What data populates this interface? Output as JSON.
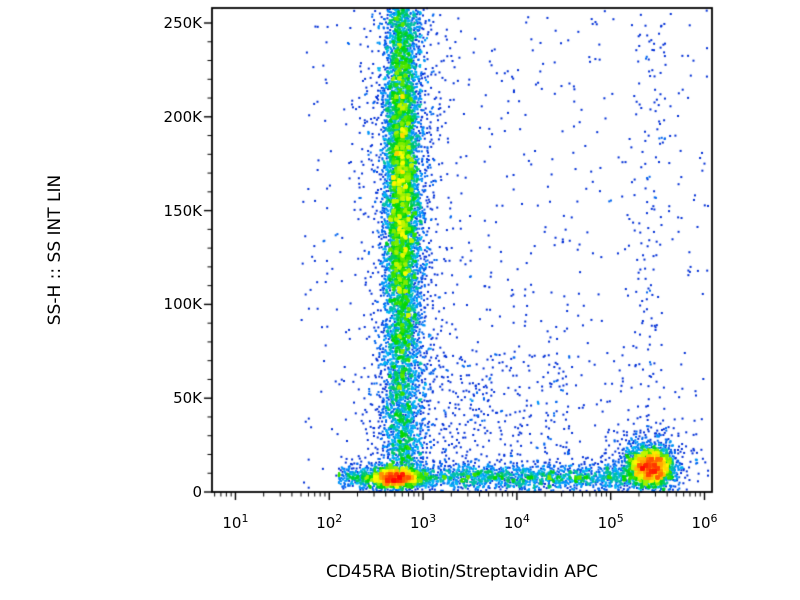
{
  "figure": {
    "background": "#ffffff",
    "text_color": "#000000"
  },
  "chart_data": {
    "type": "scatter",
    "subtype": "flow-cytometry-pseudocolor-density",
    "title": "",
    "xlabel": "CD45RA Biotin/Streptavidin APC",
    "ylabel": "SS-H :: SS INT LIN",
    "x_scale": "log10",
    "x_axis_range_log10": [
      0.75,
      6.08
    ],
    "x_ticks": [
      {
        "base": "10",
        "exp": "1",
        "log10": 1
      },
      {
        "base": "10",
        "exp": "2",
        "log10": 2
      },
      {
        "base": "10",
        "exp": "3",
        "log10": 3
      },
      {
        "base": "10",
        "exp": "4",
        "log10": 4
      },
      {
        "base": "10",
        "exp": "5",
        "log10": 5
      },
      {
        "base": "10",
        "exp": "6",
        "log10": 6
      }
    ],
    "y_scale": "linear",
    "y_range": [
      0,
      258000
    ],
    "y_ticks": [
      {
        "label": "0",
        "value": 0
      },
      {
        "label": "50K",
        "value": 50000
      },
      {
        "label": "100K",
        "value": 100000
      },
      {
        "label": "150K",
        "value": 150000
      },
      {
        "label": "200K",
        "value": 200000
      },
      {
        "label": "250K",
        "value": 250000
      }
    ],
    "y_minor_step": 10000,
    "point_size": 2,
    "bin_size": 3,
    "seed": 42,
    "colormap": [
      {
        "t": 0.0,
        "color": "#000080"
      },
      {
        "t": 0.22,
        "color": "#0038e8"
      },
      {
        "t": 0.42,
        "color": "#00b4ff"
      },
      {
        "t": 0.58,
        "color": "#00d800"
      },
      {
        "t": 0.74,
        "color": "#ffff00"
      },
      {
        "t": 0.88,
        "color": "#ff9000"
      },
      {
        "t": 1.0,
        "color": "#ff0000"
      }
    ],
    "populations": [
      {
        "name": "vertical-smear",
        "count": 5000,
        "x": {
          "dist": "lognormal",
          "mean": 2.78,
          "sd": 0.1
        },
        "y": {
          "dist": "uniform",
          "min": 3000,
          "max": 258000
        }
      },
      {
        "name": "vertical-smear-core",
        "count": 3200,
        "x": {
          "dist": "lognormal",
          "mean": 2.77,
          "sd": 0.09
        },
        "y": {
          "dist": "normal",
          "mean": 160000,
          "sd": 45000
        }
      },
      {
        "name": "vertical-smear-fringe",
        "count": 1500,
        "x": {
          "dist": "lognormal",
          "mean": 2.8,
          "sd": 0.22
        },
        "y": {
          "dist": "uniform",
          "min": 3000,
          "max": 255000
        }
      },
      {
        "name": "bottom-band",
        "count": 2200,
        "x": {
          "dist": "loguniform",
          "min": 2.1,
          "max": 5.15
        },
        "y": {
          "dist": "normal",
          "mean": 8000,
          "sd": 3500
        }
      },
      {
        "name": "bottom-band-left-dense",
        "count": 1300,
        "x": {
          "dist": "lognormal",
          "mean": 2.7,
          "sd": 0.13
        },
        "y": {
          "dist": "normal",
          "mean": 7500,
          "sd": 2600
        }
      },
      {
        "name": "bottom-right-cluster",
        "count": 2600,
        "x": {
          "dist": "lognormal",
          "mean": 5.42,
          "sd": 0.12
        },
        "y": {
          "dist": "normal",
          "mean": 13000,
          "sd": 5200
        }
      },
      {
        "name": "cluster-halo",
        "count": 400,
        "x": {
          "dist": "lognormal",
          "mean": 5.38,
          "sd": 0.26
        },
        "y": {
          "dist": "normal",
          "mean": 17000,
          "sd": 9000
        }
      },
      {
        "name": "right-column-sparse",
        "count": 130,
        "x": {
          "dist": "lognormal",
          "mean": 5.4,
          "sd": 0.14
        },
        "y": {
          "dist": "uniform",
          "min": 20000,
          "max": 250000
        }
      },
      {
        "name": "mid-low-sparse",
        "count": 350,
        "x": {
          "dist": "loguniform",
          "min": 2.95,
          "max": 4.6
        },
        "y": {
          "dist": "uniform",
          "min": 2000,
          "max": 75000
        }
      },
      {
        "name": "background",
        "count": 650,
        "x": {
          "dist": "loguniform",
          "min": 1.7,
          "max": 6.05
        },
        "y": {
          "dist": "uniform",
          "min": 1000,
          "max": 257000
        }
      }
    ]
  }
}
